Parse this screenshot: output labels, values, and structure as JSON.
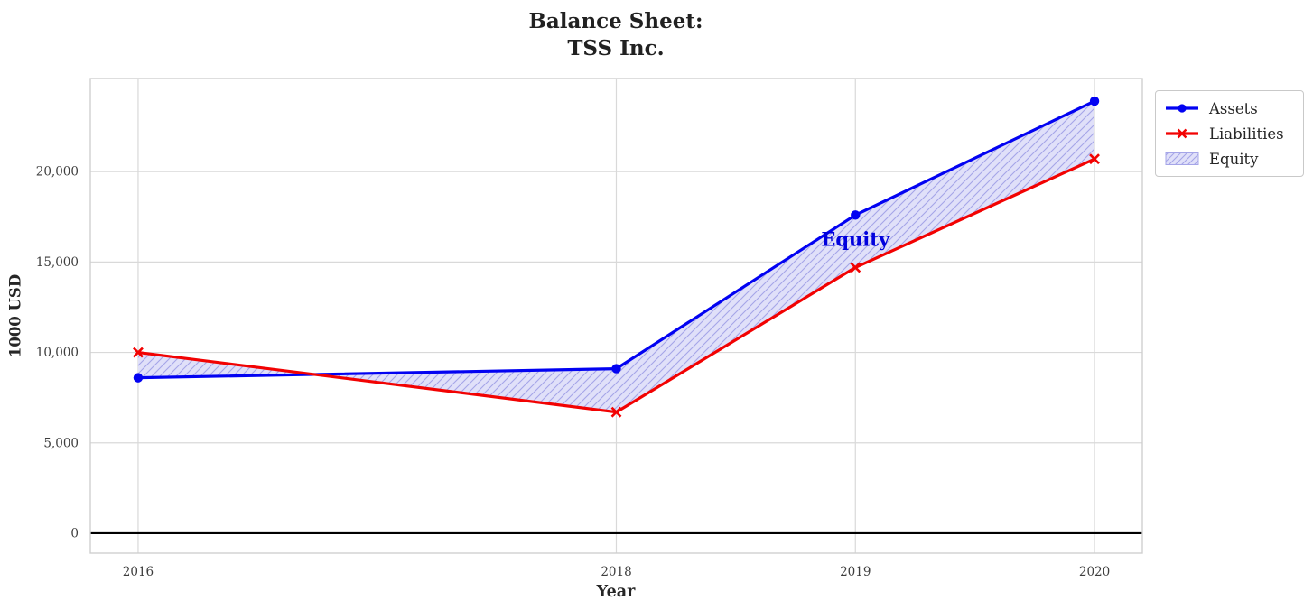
{
  "chart_data": {
    "type": "line",
    "title": "Balance Sheet:\nTSS Inc.",
    "title_lines": [
      "Balance Sheet:",
      "TSS Inc."
    ],
    "xlabel": "Year",
    "ylabel": "1000 USD",
    "x": [
      2016,
      2018,
      2019,
      2020
    ],
    "x_tick_labels": [
      "2016",
      "2018",
      "2019",
      "2020"
    ],
    "y_tick_values": [
      0,
      5000,
      10000,
      15000,
      20000
    ],
    "y_tick_labels": [
      "0",
      "5,000",
      "10,000",
      "15,000",
      "20,000"
    ],
    "xlim": [
      2015.8,
      2020.2
    ],
    "ylim": [
      -1100,
      25150
    ],
    "grid": true,
    "zero_line_color": "#000000",
    "series": [
      {
        "name": "Assets",
        "marker": "circle",
        "color": "#0202f2",
        "values": [
          8600,
          9100,
          17600,
          23900
        ]
      },
      {
        "name": "Liabilities",
        "marker": "x",
        "color": "#f20202",
        "values": [
          10000,
          6700,
          14700,
          20700
        ]
      }
    ],
    "equity_fill": {
      "name": "Equity",
      "between": [
        "Assets",
        "Liabilities"
      ],
      "fill_color": "#e0e0f9",
      "hatch_color": "#a5a5e8",
      "hatch": "///"
    },
    "annotation": {
      "text": "Equity",
      "x": 2019,
      "y": 16250,
      "color": "#0000dd"
    },
    "legend": {
      "position": "upper-right-outside",
      "items": [
        "Assets",
        "Liabilities",
        "Equity"
      ]
    },
    "colors": {
      "grid": "#d9d9d9",
      "spine": "#cfcfcf",
      "tick_text": "#3d3d3d",
      "text": "#262626",
      "title": "#212121"
    }
  }
}
